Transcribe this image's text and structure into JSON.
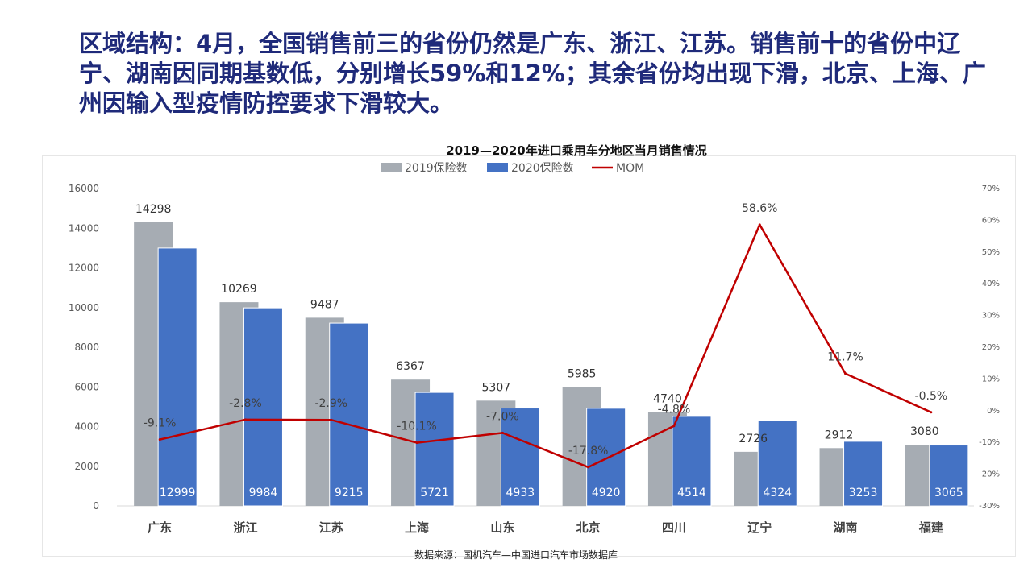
{
  "headline": "区域结构：4月，全国销售前三的省份仍然是广东、浙江、江苏。销售前十的省份中辽宁、湖南因同期基数低，分别增长59%和12%；其余省份均出现下滑，北京、上海、广州因输入型疫情防控要求下滑较大。",
  "chart_data": {
    "type": "bar",
    "title": "2019—2020年进口乘用车分地区当月销售情况",
    "categories": [
      "广东",
      "浙江",
      "江苏",
      "上海",
      "山东",
      "北京",
      "四川",
      "辽宁",
      "湖南",
      "福建"
    ],
    "series": [
      {
        "name": "2019保险数",
        "type": "bar",
        "color": "#a6acb3",
        "values": [
          14298,
          10269,
          9487,
          6367,
          5307,
          5985,
          4740,
          2726,
          2912,
          3080
        ],
        "labels": [
          "14298",
          "10269",
          "9487",
          "6367",
          "5307",
          "5985",
          "4740",
          "2726",
          "2912",
          "3080"
        ]
      },
      {
        "name": "2020保险数",
        "type": "bar",
        "color": "#4472c4",
        "values": [
          12999,
          9984,
          9215,
          5721,
          4933,
          4920,
          4514,
          4324,
          3253,
          3065
        ],
        "labels": [
          "12999",
          "9984",
          "9215",
          "5721",
          "4933",
          "4920",
          "4514",
          "4324",
          "3253",
          "3065"
        ]
      },
      {
        "name": "MOM",
        "type": "line",
        "color": "#c00000",
        "axis": "right",
        "values": [
          -9.1,
          -2.8,
          -2.9,
          -10.1,
          -7.0,
          -17.8,
          -4.8,
          58.6,
          11.7,
          -0.5
        ],
        "labels": [
          "-9.1%",
          "-2.8%",
          "-2.9%",
          "-10.1%",
          "-7.0%",
          "-17.8%",
          "-4.8%",
          "58.6%",
          "11.7%",
          "-0.5%"
        ]
      }
    ],
    "y_left": {
      "min": 0,
      "max": 16000,
      "ticks": [
        "0",
        "2000",
        "4000",
        "6000",
        "8000",
        "10000",
        "12000",
        "14000",
        "16000"
      ]
    },
    "y_right": {
      "min": -30,
      "max": 70,
      "ticks": [
        "-30%",
        "-20%",
        "-10%",
        "0%",
        "10%",
        "20%",
        "30%",
        "40%",
        "50%",
        "60%",
        "70%"
      ]
    },
    "grid": false,
    "legend_position": "top",
    "source": "数据来源：国机汽车—中国进口汽车市场数据库"
  }
}
